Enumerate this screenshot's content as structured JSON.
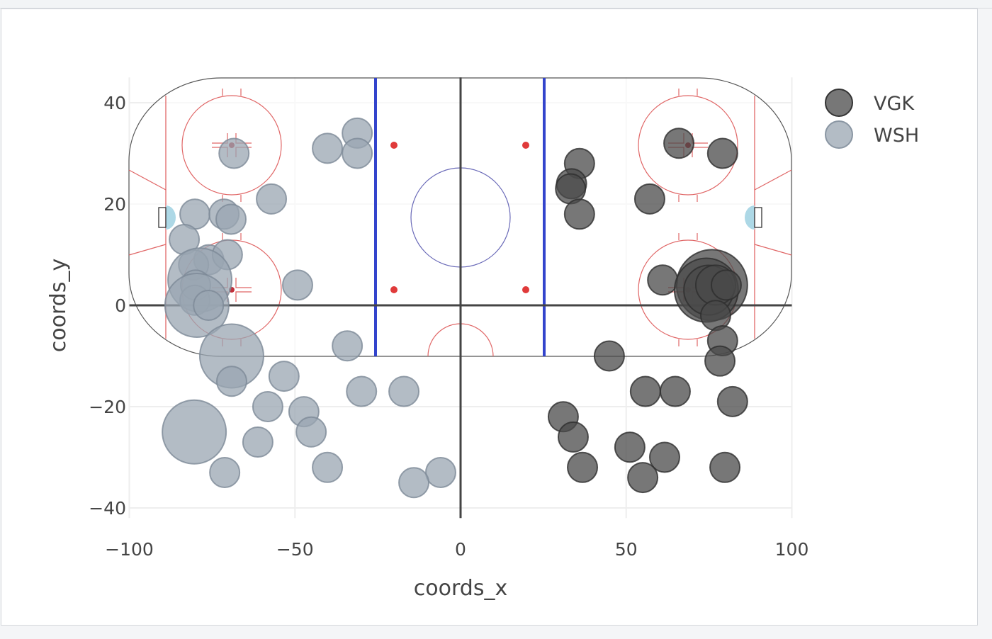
{
  "chart_data": {
    "type": "scatter",
    "subtype": "bubble",
    "title": "",
    "xlabel": "coords_x",
    "ylabel": "coords_y",
    "xlim": [
      -100,
      100
    ],
    "ylim": [
      -42,
      45
    ],
    "xticks": [
      -100,
      -50,
      0,
      50,
      100
    ],
    "yticks": [
      -40,
      -20,
      0,
      20,
      40
    ],
    "xtick_labels": [
      "−100",
      "−50",
      "0",
      "50",
      "100"
    ],
    "ytick_labels": [
      "−40",
      "−20",
      "0",
      "20",
      "40"
    ],
    "grid": true,
    "legend_position": "top-right outside",
    "background": "hockey rink (NHL half-rink markings)",
    "series": [
      {
        "name": "VGK",
        "color": "#4a4a4a",
        "opacity": 0.75,
        "points": [
          {
            "x": 65.9,
            "y": 32,
            "size": 1
          },
          {
            "x": 79.1,
            "y": 30,
            "size": 1
          },
          {
            "x": 35.9,
            "y": 28,
            "size": 1
          },
          {
            "x": 33.5,
            "y": 24,
            "size": 1
          },
          {
            "x": 33.2,
            "y": 23,
            "size": 1
          },
          {
            "x": 35.9,
            "y": 18,
            "size": 1
          },
          {
            "x": 57.1,
            "y": 21,
            "size": 1
          },
          {
            "x": 61.0,
            "y": 5,
            "size": 1
          },
          {
            "x": 75.9,
            "y": 4,
            "size": 6
          },
          {
            "x": 74.2,
            "y": 3,
            "size": 5
          },
          {
            "x": 74.9,
            "y": 3,
            "size": 3
          },
          {
            "x": 77.0,
            "y": 4,
            "size": 2
          },
          {
            "x": 80.2,
            "y": 4,
            "size": 1
          },
          {
            "x": 77.0,
            "y": -2,
            "size": 1
          },
          {
            "x": 79.1,
            "y": -7,
            "size": 1
          },
          {
            "x": 78.3,
            "y": -11,
            "size": 1
          },
          {
            "x": 44.9,
            "y": -10,
            "size": 1
          },
          {
            "x": 55.8,
            "y": -17,
            "size": 1
          },
          {
            "x": 64.8,
            "y": -17,
            "size": 1
          },
          {
            "x": 82.1,
            "y": -19,
            "size": 1
          },
          {
            "x": 31.0,
            "y": -22,
            "size": 1
          },
          {
            "x": 34.0,
            "y": -26,
            "size": 1
          },
          {
            "x": 51.1,
            "y": -28,
            "size": 1
          },
          {
            "x": 61.6,
            "y": -30,
            "size": 1
          },
          {
            "x": 36.8,
            "y": -32,
            "size": 1
          },
          {
            "x": 79.8,
            "y": -32,
            "size": 1
          },
          {
            "x": 55.0,
            "y": -34,
            "size": 1
          }
        ]
      },
      {
        "name": "WSH",
        "color": "#9aa5b1",
        "opacity": 0.75,
        "points": [
          {
            "x": -68.4,
            "y": 30,
            "size": 1
          },
          {
            "x": -40.2,
            "y": 31,
            "size": 1
          },
          {
            "x": -31.2,
            "y": 34,
            "size": 1
          },
          {
            "x": -31.2,
            "y": 30,
            "size": 1
          },
          {
            "x": -57.1,
            "y": 21,
            "size": 1
          },
          {
            "x": -80.2,
            "y": 18,
            "size": 1
          },
          {
            "x": -71.4,
            "y": 18,
            "size": 1
          },
          {
            "x": -69.3,
            "y": 17,
            "size": 1
          },
          {
            "x": -83.4,
            "y": 13,
            "size": 1
          },
          {
            "x": -76.0,
            "y": 9,
            "size": 1
          },
          {
            "x": -70.4,
            "y": 10,
            "size": 1
          },
          {
            "x": -80.6,
            "y": 8,
            "size": 1
          },
          {
            "x": -78.7,
            "y": 5,
            "size": 5
          },
          {
            "x": -80.0,
            "y": 4,
            "size": 1
          },
          {
            "x": -80.2,
            "y": 1,
            "size": 1
          },
          {
            "x": -79.6,
            "y": 0,
            "size": 5
          },
          {
            "x": -76.1,
            "y": 0,
            "size": 1
          },
          {
            "x": -49.2,
            "y": 4,
            "size": 1
          },
          {
            "x": -69.1,
            "y": -10,
            "size": 5
          },
          {
            "x": -69.1,
            "y": -15,
            "size": 1
          },
          {
            "x": -34.2,
            "y": -8,
            "size": 1
          },
          {
            "x": -53.3,
            "y": -14,
            "size": 1
          },
          {
            "x": -29.9,
            "y": -17,
            "size": 1
          },
          {
            "x": -17.1,
            "y": -17,
            "size": 1
          },
          {
            "x": -58.2,
            "y": -20,
            "size": 1
          },
          {
            "x": -47.3,
            "y": -21,
            "size": 1
          },
          {
            "x": -45.1,
            "y": -25,
            "size": 1
          },
          {
            "x": -80.4,
            "y": -25,
            "size": 5
          },
          {
            "x": -61.2,
            "y": -27,
            "size": 1
          },
          {
            "x": -40.2,
            "y": -32,
            "size": 1
          },
          {
            "x": -71.2,
            "y": -33,
            "size": 1
          },
          {
            "x": -6.0,
            "y": -33,
            "size": 1
          },
          {
            "x": -14.1,
            "y": -35,
            "size": 1
          }
        ]
      }
    ]
  },
  "legend": {
    "items": [
      {
        "label": "VGK",
        "color": "#4a4a4a"
      },
      {
        "label": "WSH",
        "color": "#9aa5b1"
      }
    ]
  },
  "axes": {
    "x_title": "coords_x",
    "y_title": "coords_y"
  },
  "colors": {
    "blue_line": "#3344cc",
    "red_line": "#e06666",
    "faceoff_dot": "#e03a3a",
    "crease": "#add8e6",
    "center_circle": "#6a6ab8",
    "grid": "#eeeeee",
    "zero_line": "#444444"
  }
}
